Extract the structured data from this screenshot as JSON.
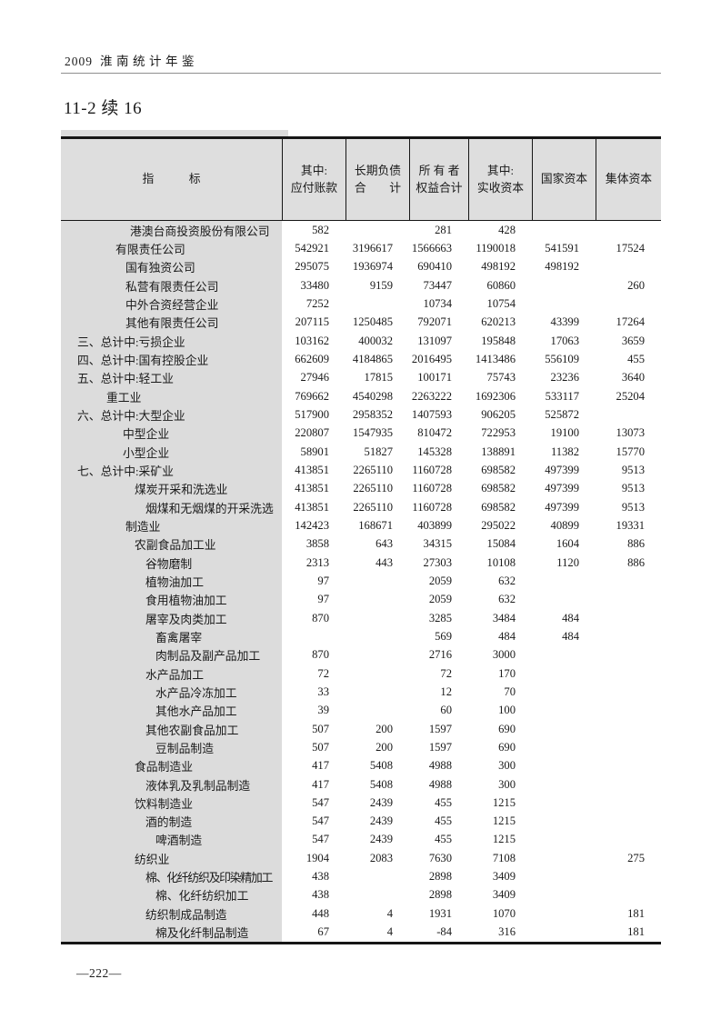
{
  "page": {
    "running_header_year": "2009",
    "running_header_title": "淮南统计年鉴",
    "table_title": "11-2 续 16",
    "page_number": "—222—"
  },
  "colors": {
    "label_column_shade": "#dcdcdc",
    "header_shade": "#dedede",
    "border": "#161616",
    "text": "#1a1a1a"
  },
  "table": {
    "columns": [
      {
        "line1": "指　　　标",
        "line2": ""
      },
      {
        "line1": "其中:",
        "line2": "应付账款"
      },
      {
        "line1": "长期负债",
        "line2": "合　　计"
      },
      {
        "line1": "所 有 者",
        "line2": "权益合计"
      },
      {
        "line1": "其中:",
        "line2": "实收资本"
      },
      {
        "line1": "国家资本",
        "line2": ""
      },
      {
        "line1": "集体资本",
        "line2": ""
      }
    ],
    "rows": [
      {
        "label": "港澳台商投资股份有限公司",
        "indent": 5,
        "values": [
          "582",
          "",
          "281",
          "428",
          "",
          ""
        ]
      },
      {
        "label": "有限责任公司",
        "indent": 2,
        "values": [
          "542921",
          "3196617",
          "1566663",
          "1190018",
          "541591",
          "17524"
        ]
      },
      {
        "label": "国有独资公司",
        "indent": 4,
        "values": [
          "295075",
          "1936974",
          "690410",
          "498192",
          "498192",
          ""
        ]
      },
      {
        "label": "私营有限责任公司",
        "indent": 4,
        "values": [
          "33480",
          "9159",
          "73447",
          "60860",
          "",
          "260"
        ]
      },
      {
        "label": "中外合资经营企业",
        "indent": 4,
        "values": [
          "7252",
          "",
          "10734",
          "10754",
          "",
          ""
        ]
      },
      {
        "label": "其他有限责任公司",
        "indent": 4,
        "values": [
          "207115",
          "1250485",
          "792071",
          "620213",
          "43399",
          "17264"
        ]
      },
      {
        "label": "三、总计中:亏损企业",
        "indent": 0,
        "values": [
          "103162",
          "400032",
          "131097",
          "195848",
          "17063",
          "3659"
        ]
      },
      {
        "label": "四、总计中:国有控股企业",
        "indent": 0,
        "values": [
          "662609",
          "4184865",
          "2016495",
          "1413486",
          "556109",
          "455"
        ]
      },
      {
        "label": "五、总计中:轻工业",
        "indent": 0,
        "values": [
          "27946",
          "17815",
          "100171",
          "75743",
          "23236",
          "3640"
        ]
      },
      {
        "label": "重工业",
        "indent": 1,
        "values": [
          "769662",
          "4540298",
          "2263222",
          "1692306",
          "533117",
          "25204"
        ]
      },
      {
        "label": "六、总计中:大型企业",
        "indent": 0,
        "values": [
          "517900",
          "2958352",
          "1407593",
          "906205",
          "525872",
          ""
        ]
      },
      {
        "label": "中型企业",
        "indent": 3,
        "values": [
          "220807",
          "1547935",
          "810472",
          "722953",
          "19100",
          "13073"
        ]
      },
      {
        "label": "小型企业",
        "indent": 3,
        "values": [
          "58901",
          "51827",
          "145328",
          "138891",
          "11382",
          "15770"
        ]
      },
      {
        "label": "七、总计中:采矿业",
        "indent": 0,
        "values": [
          "413851",
          "2265110",
          "1160728",
          "698582",
          "497399",
          "9513"
        ]
      },
      {
        "label": "煤炭开采和洗选业",
        "indent": 6,
        "values": [
          "413851",
          "2265110",
          "1160728",
          "698582",
          "497399",
          "9513"
        ]
      },
      {
        "label": "烟煤和无烟煤的开采洗选",
        "indent": 7,
        "values": [
          "413851",
          "2265110",
          "1160728",
          "698582",
          "497399",
          "9513"
        ]
      },
      {
        "label": "制造业",
        "indent": 4,
        "values": [
          "142423",
          "168671",
          "403899",
          "295022",
          "40899",
          "19331"
        ]
      },
      {
        "label": "农副食品加工业",
        "indent": 6,
        "values": [
          "3858",
          "643",
          "34315",
          "15084",
          "1604",
          "886"
        ]
      },
      {
        "label": "谷物磨制",
        "indent": 7,
        "values": [
          "2313",
          "443",
          "27303",
          "10108",
          "1120",
          "886"
        ]
      },
      {
        "label": "植物油加工",
        "indent": 7,
        "values": [
          "97",
          "",
          "2059",
          "632",
          "",
          ""
        ]
      },
      {
        "label": "食用植物油加工",
        "indent": 7,
        "values": [
          "97",
          "",
          "2059",
          "632",
          "",
          ""
        ]
      },
      {
        "label": "屠宰及肉类加工",
        "indent": 7,
        "values": [
          "870",
          "",
          "3285",
          "3484",
          "484",
          ""
        ]
      },
      {
        "label": "畜禽屠宰",
        "indent": 8,
        "values": [
          "",
          "",
          "569",
          "484",
          "484",
          ""
        ]
      },
      {
        "label": "肉制品及副产品加工",
        "indent": 8,
        "values": [
          "870",
          "",
          "2716",
          "3000",
          "",
          ""
        ]
      },
      {
        "label": "水产品加工",
        "indent": 7,
        "values": [
          "72",
          "",
          "72",
          "170",
          "",
          ""
        ]
      },
      {
        "label": "水产品冷冻加工",
        "indent": 8,
        "values": [
          "33",
          "",
          "12",
          "70",
          "",
          ""
        ]
      },
      {
        "label": "其他水产品加工",
        "indent": 8,
        "values": [
          "39",
          "",
          "60",
          "100",
          "",
          ""
        ]
      },
      {
        "label": "其他农副食品加工",
        "indent": 7,
        "values": [
          "507",
          "200",
          "1597",
          "690",
          "",
          ""
        ]
      },
      {
        "label": "豆制品制造",
        "indent": 8,
        "values": [
          "507",
          "200",
          "1597",
          "690",
          "",
          ""
        ]
      },
      {
        "label": "食品制造业",
        "indent": 6,
        "values": [
          "417",
          "5408",
          "4988",
          "300",
          "",
          ""
        ]
      },
      {
        "label": "液体乳及乳制品制造",
        "indent": 7,
        "values": [
          "417",
          "5408",
          "4988",
          "300",
          "",
          ""
        ]
      },
      {
        "label": "饮料制造业",
        "indent": 6,
        "values": [
          "547",
          "2439",
          "455",
          "1215",
          "",
          ""
        ]
      },
      {
        "label": "酒的制造",
        "indent": 7,
        "values": [
          "547",
          "2439",
          "455",
          "1215",
          "",
          ""
        ]
      },
      {
        "label": "啤酒制造",
        "indent": 8,
        "values": [
          "547",
          "2439",
          "455",
          "1215",
          "",
          ""
        ]
      },
      {
        "label": "纺织业",
        "indent": 6,
        "values": [
          "1904",
          "2083",
          "7630",
          "7108",
          "",
          "275"
        ]
      },
      {
        "label": "棉、化纤纺织及印染精加工",
        "indent": 7,
        "values": [
          "438",
          "",
          "2898",
          "3409",
          "",
          ""
        ]
      },
      {
        "label": "棉、化纤纺织加工",
        "indent": 8,
        "values": [
          "438",
          "",
          "2898",
          "3409",
          "",
          ""
        ]
      },
      {
        "label": "纺织制成品制造",
        "indent": 7,
        "values": [
          "448",
          "4",
          "1931",
          "1070",
          "",
          "181"
        ]
      },
      {
        "label": "棉及化纤制品制造",
        "indent": 8,
        "values": [
          "67",
          "4",
          "-84",
          "316",
          "",
          "181"
        ]
      }
    ]
  }
}
